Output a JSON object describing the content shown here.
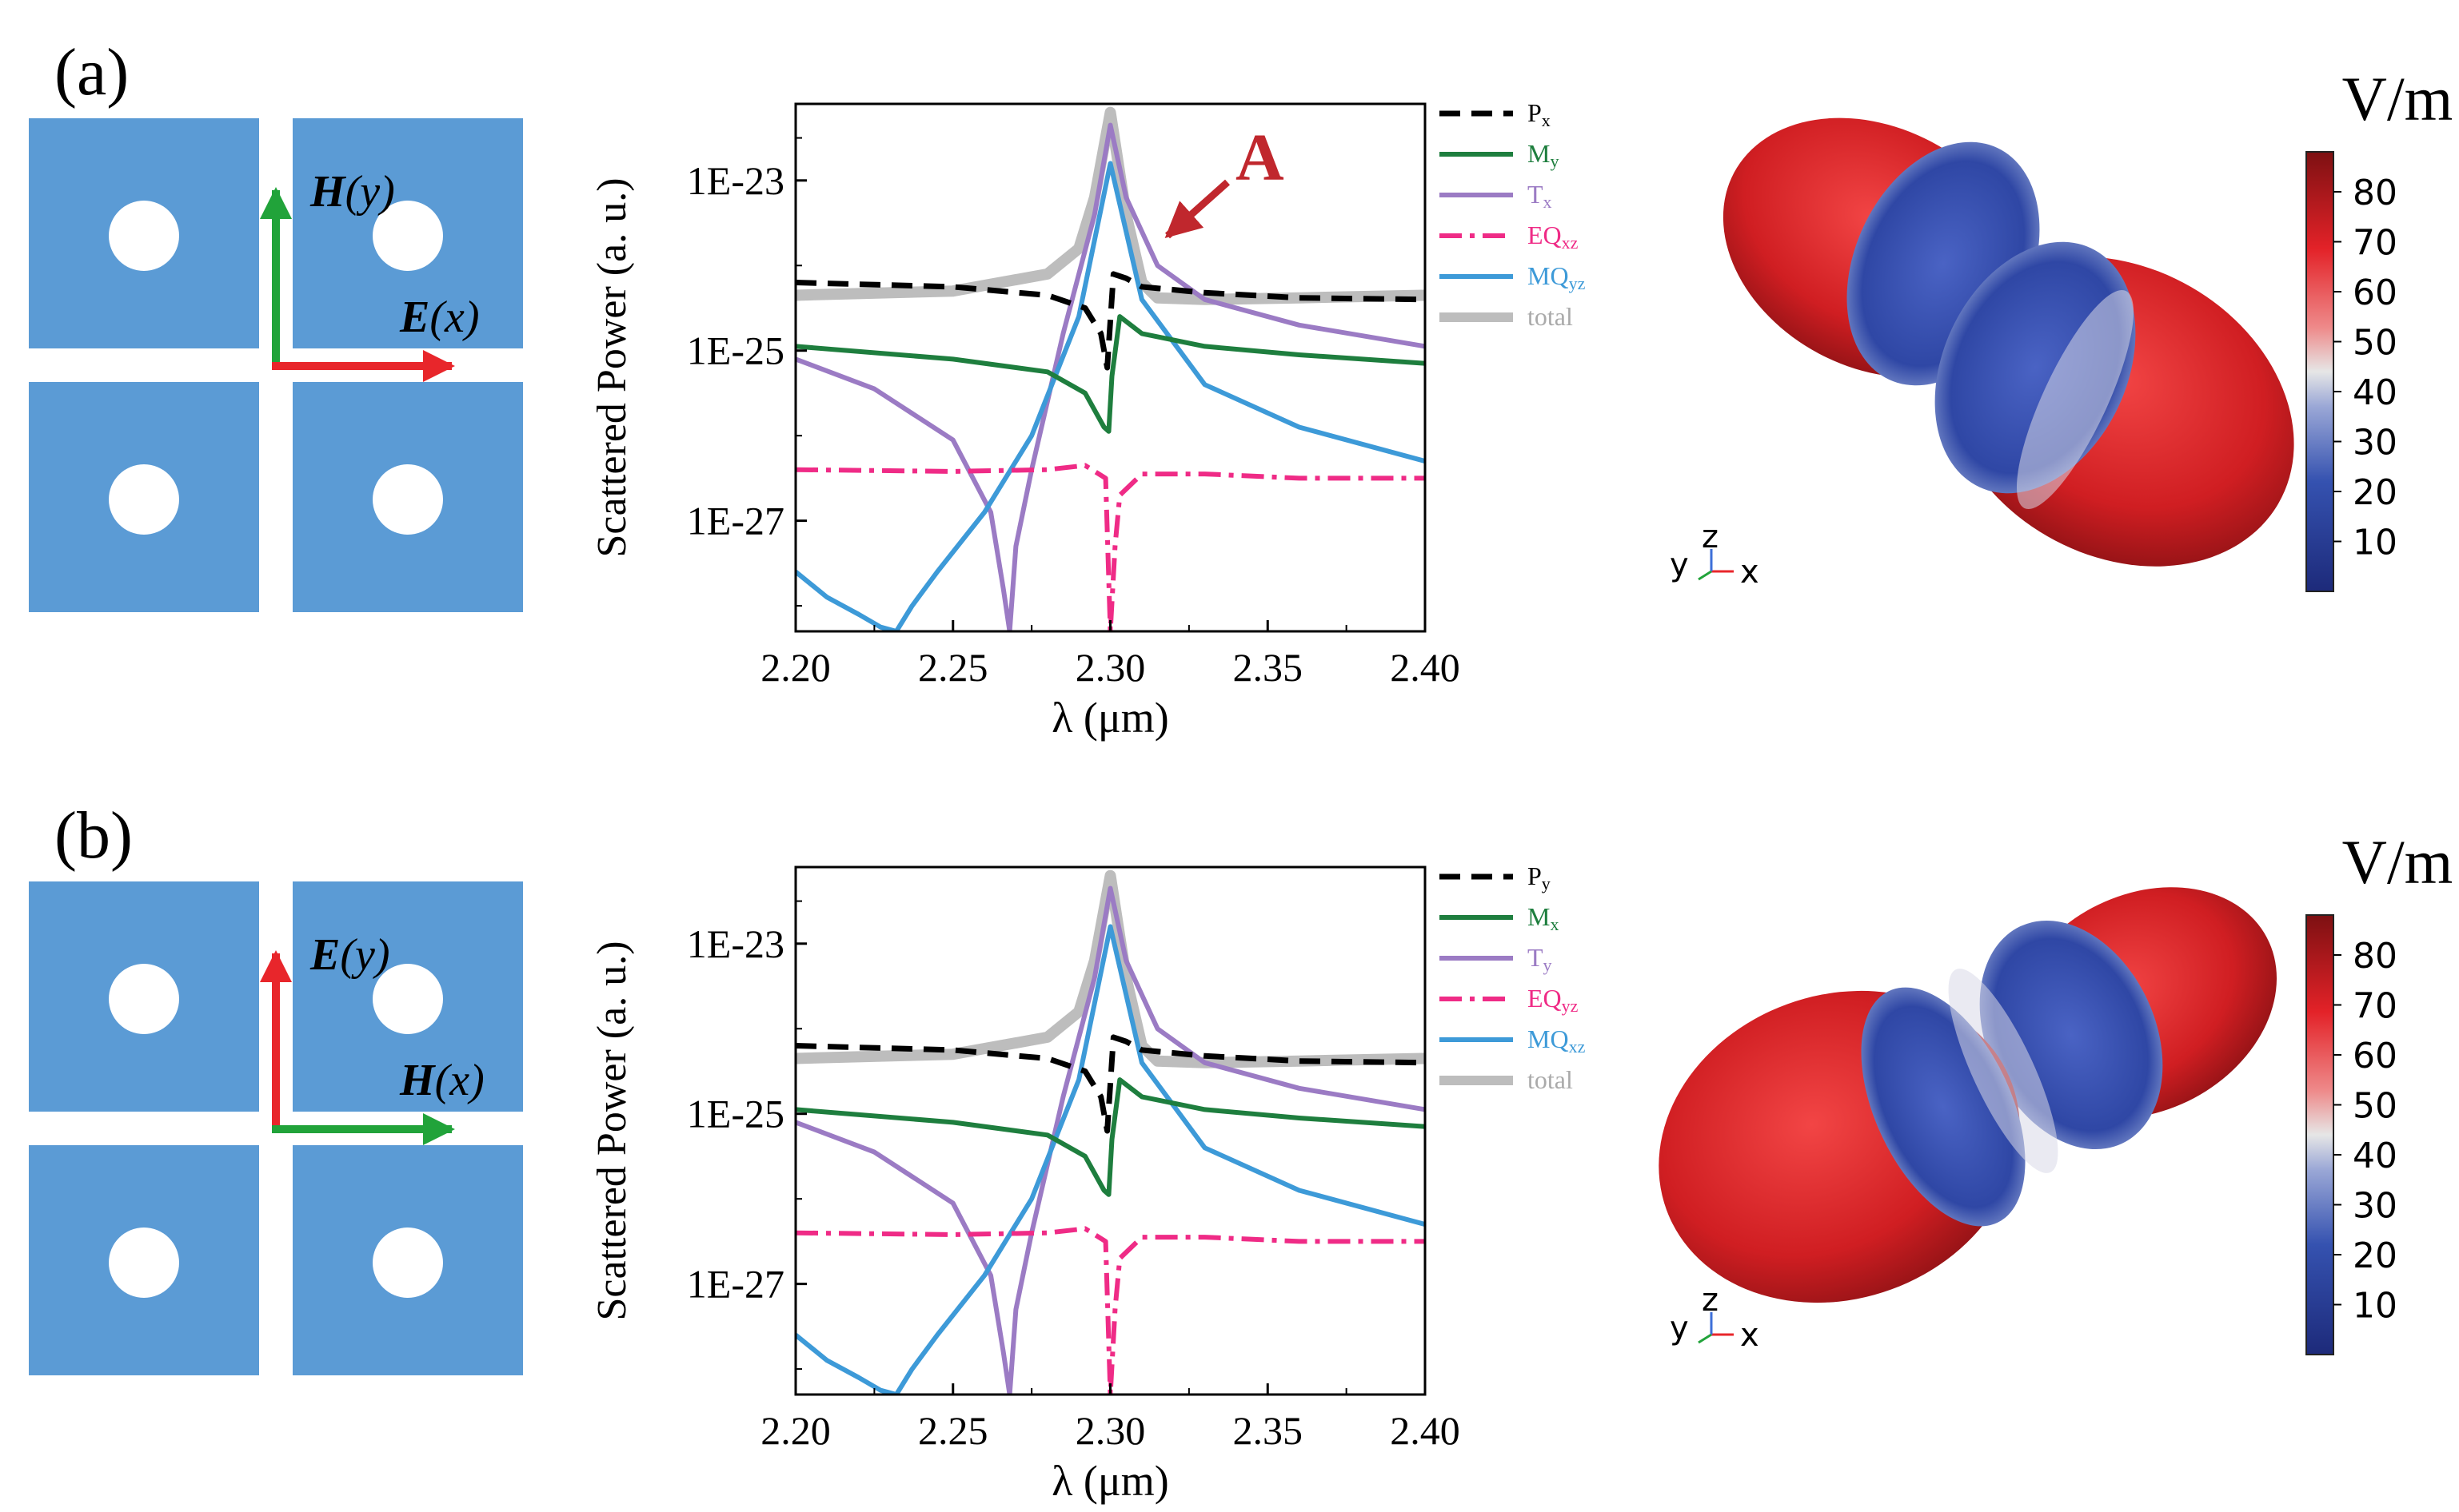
{
  "colors": {
    "cell": "#5b9bd5",
    "hole": "#ffffff",
    "red": "#e8262b",
    "green": "#21a33a",
    "Px": "#000000",
    "My": "#1e7e3e",
    "Tx": "#9b7bc4",
    "EQ": "#ef2b86",
    "MQ": "#3d9ad8",
    "total": "#bdbdbd",
    "annotation": "#c0272d"
  },
  "panels": [
    {
      "label": "(a)",
      "field_vertical": "H(y)",
      "field_vertical_sym": "H",
      "field_vertical_axis": "(y)",
      "field_horizontal_sym": "E",
      "field_horizontal_axis": "(x)",
      "vertical_color": "green",
      "horizontal_color": "red",
      "annotation": "A",
      "colorbar_unit": "V/m",
      "colorbar_ticks": [
        "80",
        "70",
        "60",
        "50",
        "40",
        "30",
        "20",
        "10"
      ],
      "axes_triad": {
        "y": "y",
        "z": "z",
        "x": "x"
      },
      "lobe_orientation": "left-up"
    },
    {
      "label": "(b)",
      "field_vertical_sym": "E",
      "field_vertical_axis": "(y)",
      "field_horizontal_sym": "H",
      "field_horizontal_axis": "(x)",
      "vertical_color": "red",
      "horizontal_color": "green",
      "annotation": "",
      "colorbar_unit": "V/m",
      "colorbar_ticks": [
        "80",
        "70",
        "60",
        "50",
        "40",
        "30",
        "20",
        "10"
      ],
      "axes_triad": {
        "y": "y",
        "z": "z",
        "x": "x"
      },
      "lobe_orientation": "right-up"
    }
  ],
  "chart_data": [
    {
      "type": "line",
      "title": "",
      "xlabel": "λ (μm)",
      "ylabel": "Scattered Power (a. u.)",
      "xlim": [
        2.2,
        2.4
      ],
      "ylim_log10": [
        -28.3,
        -22.1
      ],
      "x_ticks": [
        "2.20",
        "2.25",
        "2.30",
        "2.35",
        "2.40"
      ],
      "y_ticks": [
        "1E-23",
        "1E-25",
        "1E-27"
      ],
      "legend": [
        "Px",
        "My",
        "Tx",
        "EQxz",
        "MQyz",
        "total"
      ],
      "legend_main": [
        "P",
        "M",
        "T",
        "EQ",
        "MQ",
        "total"
      ],
      "legend_sub": [
        "x",
        "y",
        "x",
        "xz",
        "yz",
        ""
      ],
      "annotation": "A",
      "series": [
        {
          "name": "Px",
          "style": "dashed",
          "x": [
            2.2,
            2.25,
            2.28,
            2.292,
            2.297,
            2.299,
            2.301,
            2.305,
            2.31,
            2.33,
            2.36,
            2.4
          ],
          "log10": [
            -24.2,
            -24.25,
            -24.35,
            -24.5,
            -24.8,
            -25.2,
            -24.1,
            -24.15,
            -24.25,
            -24.32,
            -24.38,
            -24.4
          ]
        },
        {
          "name": "My",
          "style": "solid",
          "x": [
            2.2,
            2.25,
            2.28,
            2.292,
            2.298,
            2.2995,
            2.3005,
            2.303,
            2.31,
            2.33,
            2.36,
            2.4
          ],
          "log10": [
            -24.95,
            -25.1,
            -25.25,
            -25.5,
            -25.9,
            -25.95,
            -25.3,
            -24.6,
            -24.8,
            -24.95,
            -25.05,
            -25.15
          ]
        },
        {
          "name": "Tx",
          "style": "solid",
          "x": [
            2.2,
            2.225,
            2.25,
            2.262,
            2.266,
            2.268,
            2.27,
            2.275,
            2.285,
            2.295,
            2.3,
            2.305,
            2.315,
            2.33,
            2.36,
            2.4
          ],
          "log10": [
            -25.1,
            -25.45,
            -26.05,
            -26.9,
            -27.8,
            -28.3,
            -27.3,
            -26.4,
            -24.8,
            -23.4,
            -22.35,
            -23.2,
            -24.0,
            -24.4,
            -24.7,
            -24.95
          ]
        },
        {
          "name": "EQxz",
          "style": "dashdot",
          "x": [
            2.2,
            2.25,
            2.28,
            2.292,
            2.2985,
            2.3,
            2.3015,
            2.303,
            2.31,
            2.33,
            2.36,
            2.4
          ],
          "log10": [
            -26.4,
            -26.42,
            -26.4,
            -26.35,
            -26.5,
            -28.3,
            -27.3,
            -26.7,
            -26.45,
            -26.45,
            -26.5,
            -26.5
          ]
        },
        {
          "name": "MQyz",
          "style": "solid",
          "x": [
            2.2,
            2.21,
            2.22,
            2.227,
            2.232,
            2.237,
            2.245,
            2.26,
            2.275,
            2.29,
            2.3,
            2.31,
            2.33,
            2.36,
            2.4
          ],
          "log10": [
            -27.6,
            -27.9,
            -28.1,
            -28.25,
            -28.3,
            -28.0,
            -27.6,
            -26.9,
            -26.0,
            -24.6,
            -22.8,
            -24.4,
            -25.4,
            -25.9,
            -26.3
          ]
        },
        {
          "name": "total",
          "style": "thick",
          "x": [
            2.2,
            2.25,
            2.28,
            2.29,
            2.295,
            2.3,
            2.305,
            2.31,
            2.315,
            2.33,
            2.36,
            2.4
          ],
          "log10": [
            -24.35,
            -24.3,
            -24.1,
            -23.8,
            -23.2,
            -22.2,
            -23.4,
            -24.2,
            -24.38,
            -24.4,
            -24.38,
            -24.35
          ]
        }
      ]
    },
    {
      "type": "line",
      "title": "",
      "xlabel": "λ (μm)",
      "ylabel": "Scattered Power (a. u.)",
      "xlim": [
        2.2,
        2.4
      ],
      "ylim_log10": [
        -28.3,
        -22.1
      ],
      "x_ticks": [
        "2.20",
        "2.25",
        "2.30",
        "2.35",
        "2.40"
      ],
      "y_ticks": [
        "1E-23",
        "1E-25",
        "1E-27"
      ],
      "legend": [
        "Py",
        "Mx",
        "Ty",
        "EQyz",
        "MQxz",
        "total"
      ],
      "legend_main": [
        "P",
        "M",
        "T",
        "EQ",
        "MQ",
        "total"
      ],
      "legend_sub": [
        "y",
        "x",
        "y",
        "yz",
        "xz",
        ""
      ],
      "annotation": "",
      "series": [
        {
          "name": "Py",
          "style": "dashed",
          "x": [
            2.2,
            2.25,
            2.28,
            2.292,
            2.297,
            2.299,
            2.301,
            2.305,
            2.31,
            2.33,
            2.36,
            2.4
          ],
          "log10": [
            -24.2,
            -24.25,
            -24.35,
            -24.5,
            -24.8,
            -25.2,
            -24.1,
            -24.15,
            -24.25,
            -24.32,
            -24.38,
            -24.4
          ]
        },
        {
          "name": "Mx",
          "style": "solid",
          "x": [
            2.2,
            2.25,
            2.28,
            2.292,
            2.298,
            2.2995,
            2.3005,
            2.303,
            2.31,
            2.33,
            2.36,
            2.4
          ],
          "log10": [
            -24.95,
            -25.1,
            -25.25,
            -25.5,
            -25.9,
            -25.95,
            -25.3,
            -24.6,
            -24.8,
            -24.95,
            -25.05,
            -25.15
          ]
        },
        {
          "name": "Ty",
          "style": "solid",
          "x": [
            2.2,
            2.225,
            2.25,
            2.262,
            2.266,
            2.268,
            2.27,
            2.275,
            2.285,
            2.295,
            2.3,
            2.305,
            2.315,
            2.33,
            2.36,
            2.4
          ],
          "log10": [
            -25.1,
            -25.45,
            -26.05,
            -26.9,
            -27.8,
            -28.3,
            -27.3,
            -26.4,
            -24.8,
            -23.4,
            -22.35,
            -23.2,
            -24.0,
            -24.4,
            -24.7,
            -24.95
          ]
        },
        {
          "name": "EQyz",
          "style": "dashdot",
          "x": [
            2.2,
            2.25,
            2.28,
            2.292,
            2.2985,
            2.3,
            2.3015,
            2.303,
            2.31,
            2.33,
            2.36,
            2.4
          ],
          "log10": [
            -26.4,
            -26.42,
            -26.4,
            -26.35,
            -26.5,
            -28.3,
            -27.3,
            -26.7,
            -26.45,
            -26.45,
            -26.5,
            -26.5
          ]
        },
        {
          "name": "MQxz",
          "style": "solid",
          "x": [
            2.2,
            2.21,
            2.22,
            2.227,
            2.232,
            2.237,
            2.245,
            2.26,
            2.275,
            2.29,
            2.3,
            2.31,
            2.33,
            2.36,
            2.4
          ],
          "log10": [
            -27.6,
            -27.9,
            -28.1,
            -28.25,
            -28.3,
            -28.0,
            -27.6,
            -26.9,
            -26.0,
            -24.6,
            -22.8,
            -24.4,
            -25.4,
            -25.9,
            -26.3
          ]
        },
        {
          "name": "total",
          "style": "thick",
          "x": [
            2.2,
            2.25,
            2.28,
            2.29,
            2.295,
            2.3,
            2.305,
            2.31,
            2.315,
            2.33,
            2.36,
            2.4
          ],
          "log10": [
            -24.35,
            -24.3,
            -24.1,
            -23.8,
            -23.2,
            -22.2,
            -23.4,
            -24.2,
            -24.38,
            -24.4,
            -24.38,
            -24.35
          ]
        }
      ]
    }
  ]
}
